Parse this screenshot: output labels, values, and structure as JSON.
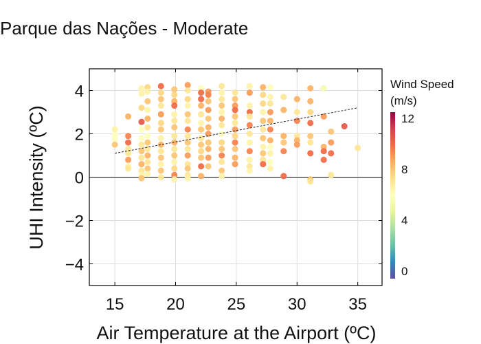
{
  "chart_data": {
    "type": "scatter",
    "title": "Parque das Nações - Moderate",
    "xlabel": "Air Temperature at the Airport (ºC)",
    "ylabel": "UHI Intensity (ºC)",
    "xlim": [
      12.9,
      37
    ],
    "ylim": [
      -5,
      5
    ],
    "xticks": [
      15,
      20,
      25,
      30,
      35
    ],
    "yticks": [
      -4,
      -2,
      0,
      2,
      4
    ],
    "ytick_labels": [
      "−4",
      "−2",
      "0",
      "2",
      "4"
    ],
    "grid": true,
    "zero_line": 0,
    "trendline": {
      "x": [
        15,
        35
      ],
      "y": [
        1.1,
        3.2
      ],
      "style": "dotted"
    },
    "colorbar": {
      "title_line1": "Wind Speed",
      "title_line2": "(m/s)",
      "colormap": "Spectral_r",
      "range": [
        -0.6,
        12.5
      ],
      "ticks": [
        0,
        4,
        8,
        12
      ]
    },
    "point_fields": [
      "air_temperature",
      "uhi_intensity",
      "wind_speed"
    ],
    "points": [
      [
        15.0,
        2.2,
        6.5
      ],
      [
        15.0,
        1.95,
        6
      ],
      [
        15.0,
        1.75,
        6
      ],
      [
        15.0,
        1.5,
        8
      ],
      [
        16.1,
        2.8,
        8.5
      ],
      [
        16.1,
        1.9,
        9.5
      ],
      [
        16.1,
        1.6,
        10
      ],
      [
        16.1,
        1.3,
        7
      ],
      [
        16.1,
        1.1,
        7
      ],
      [
        16.1,
        0.8,
        9
      ],
      [
        16.1,
        0.5,
        6.5
      ],
      [
        16.1,
        0.4,
        7
      ],
      [
        17.2,
        4.1,
        6.5
      ],
      [
        17.2,
        3.85,
        6.5
      ],
      [
        17.2,
        3.2,
        7.5
      ],
      [
        17.2,
        2.55,
        10.5
      ],
      [
        17.2,
        2.2,
        6
      ],
      [
        17.2,
        1.8,
        6
      ],
      [
        17.2,
        1.5,
        7
      ],
      [
        17.2,
        1.2,
        8
      ],
      [
        17.2,
        0.9,
        7
      ],
      [
        17.2,
        0.6,
        8.5
      ],
      [
        17.2,
        0.3,
        7
      ],
      [
        17.2,
        0.1,
        6.5
      ],
      [
        17.2,
        -0.05,
        8
      ],
      [
        17.7,
        4.15,
        7.5
      ],
      [
        17.7,
        3.95,
        6.5
      ],
      [
        17.7,
        3.5,
        8
      ],
      [
        17.7,
        3.1,
        6.5
      ],
      [
        17.7,
        2.7,
        8.5
      ],
      [
        17.7,
        2.3,
        7
      ],
      [
        17.7,
        1.9,
        6
      ],
      [
        17.7,
        1.6,
        8
      ],
      [
        17.7,
        1.3,
        7
      ],
      [
        17.7,
        1.0,
        8.5
      ],
      [
        17.7,
        0.7,
        7
      ],
      [
        17.7,
        0.4,
        8
      ],
      [
        17.7,
        0.15,
        6.5
      ],
      [
        18.8,
        4.2,
        10
      ],
      [
        18.8,
        3.9,
        7.5
      ],
      [
        18.8,
        3.6,
        8
      ],
      [
        18.8,
        3.3,
        7
      ],
      [
        18.8,
        2.9,
        9
      ],
      [
        18.8,
        2.5,
        7.5
      ],
      [
        18.8,
        2.2,
        8
      ],
      [
        18.8,
        1.8,
        6.5
      ],
      [
        18.8,
        1.5,
        8.5
      ],
      [
        18.8,
        1.2,
        7
      ],
      [
        18.8,
        0.9,
        8
      ],
      [
        18.8,
        0.6,
        6.5
      ],
      [
        18.8,
        0.3,
        8
      ],
      [
        18.8,
        0.0,
        7
      ],
      [
        19.9,
        4.05,
        8
      ],
      [
        19.9,
        3.8,
        7.5
      ],
      [
        19.9,
        3.5,
        8.5
      ],
      [
        19.9,
        3.3,
        10
      ],
      [
        19.9,
        2.9,
        6.5
      ],
      [
        19.9,
        2.6,
        7
      ],
      [
        19.9,
        2.3,
        8
      ],
      [
        19.9,
        1.9,
        7
      ],
      [
        19.9,
        1.6,
        8.5
      ],
      [
        19.9,
        1.3,
        7
      ],
      [
        19.9,
        1.0,
        8
      ],
      [
        19.9,
        0.7,
        6.5
      ],
      [
        19.9,
        0.4,
        7.5
      ],
      [
        19.9,
        0.1,
        9.5
      ],
      [
        19.9,
        -0.1,
        6.5
      ],
      [
        21.0,
        4.25,
        9
      ],
      [
        21.0,
        4.0,
        7
      ],
      [
        21.0,
        3.6,
        7.5
      ],
      [
        21.0,
        3.3,
        6.5
      ],
      [
        21.0,
        2.9,
        8
      ],
      [
        21.0,
        2.6,
        7
      ],
      [
        21.0,
        2.2,
        9.5
      ],
      [
        21.0,
        1.9,
        7
      ],
      [
        21.0,
        1.6,
        8
      ],
      [
        21.0,
        1.3,
        7
      ],
      [
        21.0,
        1.0,
        9
      ],
      [
        21.0,
        0.6,
        7
      ],
      [
        21.0,
        0.4,
        8
      ],
      [
        21.0,
        0.1,
        7
      ],
      [
        21.0,
        -0.05,
        6.5
      ],
      [
        22.1,
        4.1,
        6
      ],
      [
        22.1,
        3.9,
        10
      ],
      [
        22.1,
        3.6,
        10
      ],
      [
        22.1,
        3.3,
        8.5
      ],
      [
        22.1,
        2.9,
        7
      ],
      [
        22.1,
        2.5,
        6.5
      ],
      [
        22.1,
        2.2,
        8
      ],
      [
        22.1,
        1.8,
        7
      ],
      [
        22.1,
        1.5,
        8
      ],
      [
        22.1,
        1.2,
        7.5
      ],
      [
        22.1,
        0.9,
        8
      ],
      [
        22.1,
        0.5,
        10
      ],
      [
        22.1,
        0.05,
        8.5
      ],
      [
        22.7,
        3.95,
        9
      ],
      [
        22.7,
        3.8,
        9.5
      ],
      [
        22.7,
        3.5,
        8
      ],
      [
        22.7,
        3.1,
        9
      ],
      [
        22.7,
        2.7,
        8
      ],
      [
        22.7,
        2.3,
        8.5
      ],
      [
        22.7,
        2.0,
        9
      ],
      [
        22.7,
        1.6,
        8
      ],
      [
        22.7,
        1.3,
        8.5
      ],
      [
        22.7,
        0.9,
        9
      ],
      [
        22.7,
        0.5,
        8
      ],
      [
        23.8,
        4.2,
        7
      ],
      [
        23.8,
        3.9,
        6.5
      ],
      [
        23.8,
        3.6,
        7
      ],
      [
        23.8,
        3.3,
        8
      ],
      [
        23.8,
        3.0,
        6.5
      ],
      [
        23.8,
        2.7,
        8.5
      ],
      [
        23.8,
        2.4,
        7
      ],
      [
        23.8,
        2.0,
        6
      ],
      [
        23.8,
        1.6,
        7.5
      ],
      [
        23.8,
        1.3,
        8
      ],
      [
        23.8,
        1.0,
        9.5
      ],
      [
        23.8,
        0.7,
        7
      ],
      [
        23.8,
        0.3,
        8
      ],
      [
        23.8,
        0.05,
        6.5
      ],
      [
        24.9,
        3.9,
        7
      ],
      [
        24.9,
        3.6,
        8
      ],
      [
        24.9,
        3.3,
        9
      ],
      [
        24.9,
        3.1,
        10
      ],
      [
        24.9,
        2.8,
        8
      ],
      [
        24.9,
        2.5,
        7
      ],
      [
        24.9,
        2.2,
        9
      ],
      [
        24.9,
        1.9,
        7.5
      ],
      [
        24.9,
        1.6,
        9.5
      ],
      [
        24.9,
        1.3,
        8
      ],
      [
        24.9,
        0.9,
        8.5
      ],
      [
        24.9,
        0.6,
        9
      ],
      [
        26.1,
        4.2,
        6.5
      ],
      [
        26.1,
        3.9,
        9
      ],
      [
        26.1,
        3.3,
        6.5
      ],
      [
        26.1,
        3.0,
        10
      ],
      [
        26.1,
        2.8,
        7
      ],
      [
        26.1,
        2.4,
        9.5
      ],
      [
        26.1,
        2.0,
        7
      ],
      [
        26.1,
        1.6,
        6.5
      ],
      [
        26.1,
        1.2,
        9.5
      ],
      [
        26.1,
        0.8,
        6.5
      ],
      [
        26.1,
        0.5,
        7
      ],
      [
        26.1,
        0.3,
        6.5
      ],
      [
        27.2,
        4.15,
        8.5
      ],
      [
        27.2,
        3.8,
        7.5
      ],
      [
        27.2,
        3.4,
        7.5
      ],
      [
        27.2,
        3.0,
        6.5
      ],
      [
        27.2,
        2.6,
        8
      ],
      [
        27.2,
        2.2,
        7
      ],
      [
        27.2,
        1.8,
        8
      ],
      [
        27.2,
        1.4,
        6.5
      ],
      [
        27.2,
        1.1,
        8
      ],
      [
        27.2,
        0.8,
        7
      ],
      [
        27.2,
        0.6,
        10
      ],
      [
        27.8,
        4.15,
        6
      ],
      [
        27.8,
        3.7,
        6.5
      ],
      [
        27.8,
        3.4,
        7
      ],
      [
        27.8,
        3.0,
        9
      ],
      [
        27.8,
        2.6,
        8.5
      ],
      [
        27.8,
        2.2,
        9.5
      ],
      [
        27.8,
        1.7,
        8.5
      ],
      [
        27.8,
        1.4,
        6
      ],
      [
        27.8,
        1.1,
        6.5
      ],
      [
        27.8,
        0.7,
        6
      ],
      [
        27.8,
        0.4,
        6.5
      ],
      [
        28.9,
        3.7,
        7
      ],
      [
        28.9,
        3.1,
        8.5
      ],
      [
        28.9,
        1.9,
        8.5
      ],
      [
        28.9,
        1.6,
        8
      ],
      [
        28.9,
        1.2,
        9.5
      ],
      [
        28.9,
        0.05,
        10
      ],
      [
        30.0,
        3.6,
        8.5
      ],
      [
        30.0,
        3.0,
        7
      ],
      [
        30.0,
        2.6,
        9.5
      ],
      [
        30.0,
        1.9,
        7
      ],
      [
        30.0,
        1.7,
        8.5
      ],
      [
        30.0,
        1.5,
        9
      ],
      [
        31.1,
        4.1,
        8.5
      ],
      [
        31.1,
        3.5,
        8.5
      ],
      [
        31.1,
        3.0,
        7.5
      ],
      [
        31.1,
        2.5,
        10
      ],
      [
        31.1,
        1.9,
        8
      ],
      [
        31.1,
        1.6,
        7
      ],
      [
        31.1,
        1.1,
        10
      ],
      [
        31.1,
        -0.1,
        8
      ],
      [
        31.1,
        -0.2,
        7
      ],
      [
        32.2,
        4.1,
        5.5
      ],
      [
        32.2,
        2.8,
        9
      ],
      [
        32.2,
        1.4,
        8.5
      ],
      [
        32.2,
        1.2,
        10
      ],
      [
        32.2,
        0.8,
        10
      ],
      [
        32.8,
        2.1,
        8
      ],
      [
        32.8,
        1.6,
        9
      ],
      [
        32.8,
        1.1,
        10
      ],
      [
        32.8,
        0.1,
        7
      ],
      [
        33.9,
        2.35,
        10.5
      ],
      [
        35.0,
        1.35,
        7
      ]
    ]
  }
}
